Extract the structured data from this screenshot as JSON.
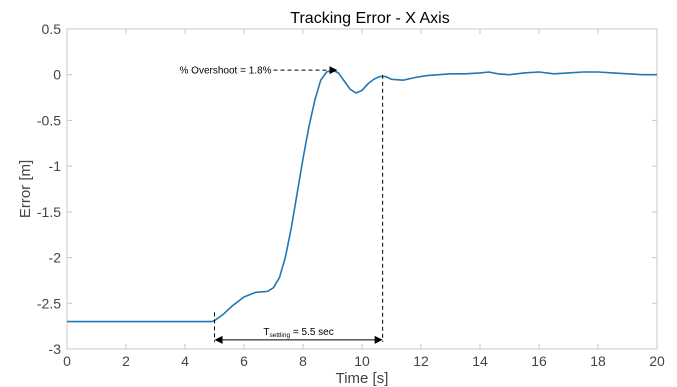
{
  "chart_data": {
    "type": "line",
    "title": "Tracking Error - X Axis",
    "xlabel": "Time [s]",
    "ylabel": "Error [m]",
    "xlim": [
      0,
      20
    ],
    "ylim": [
      -3,
      0.5
    ],
    "xticks": [
      0,
      2,
      4,
      6,
      8,
      10,
      12,
      14,
      16,
      18,
      20
    ],
    "yticks": [
      0.5,
      0,
      -0.5,
      -1,
      -1.5,
      -2,
      -2.5,
      -3
    ],
    "ytick_labels": [
      "0.5",
      "0",
      "-0.5",
      "-1",
      "-1.5",
      "-2",
      "-2.5",
      "-3"
    ],
    "grid": false,
    "series_color": "#1f77b4",
    "series": [
      {
        "x": [
          0,
          4,
          4.9,
          5.0,
          5.3,
          5.6,
          6.0,
          6.4,
          6.8,
          7.0,
          7.2,
          7.4,
          7.6,
          7.8,
          8.0,
          8.2,
          8.4,
          8.6,
          8.8,
          9.0,
          9.2,
          9.4,
          9.6,
          9.8,
          10.0,
          10.2,
          10.4,
          10.6,
          10.8,
          11.0,
          11.4,
          11.8,
          12.2,
          12.6,
          13.0,
          13.5,
          14.0,
          14.3,
          14.6,
          15.0,
          15.5,
          16.0,
          16.5,
          17.0,
          17.5,
          18.0,
          18.5,
          19.0,
          19.5,
          20.0
        ],
        "y": [
          -2.7,
          -2.7,
          -2.7,
          -2.69,
          -2.62,
          -2.53,
          -2.43,
          -2.38,
          -2.37,
          -2.33,
          -2.22,
          -2.0,
          -1.68,
          -1.3,
          -0.92,
          -0.57,
          -0.28,
          -0.06,
          0.03,
          0.05,
          0.02,
          -0.07,
          -0.16,
          -0.2,
          -0.17,
          -0.1,
          -0.05,
          -0.02,
          -0.02,
          -0.05,
          -0.06,
          -0.03,
          -0.01,
          0.0,
          0.01,
          0.01,
          0.02,
          0.03,
          0.01,
          0.0,
          0.02,
          0.03,
          0.01,
          0.02,
          0.03,
          0.03,
          0.02,
          0.01,
          0.0,
          0.0
        ]
      }
    ],
    "annotations": {
      "overshoot": {
        "label": "% Overshoot = 1.8%",
        "x_start": 7.0,
        "x_end": 9.2,
        "y": 0.05
      },
      "settling": {
        "label_prefix": "T",
        "label_sub": "settling",
        "label_suffix": " = 5.5 sec",
        "x_start": 5.0,
        "x_end": 10.7,
        "arrow_y": -2.9,
        "start_line_top": -2.6,
        "end_line_top": 0.0
      }
    }
  }
}
